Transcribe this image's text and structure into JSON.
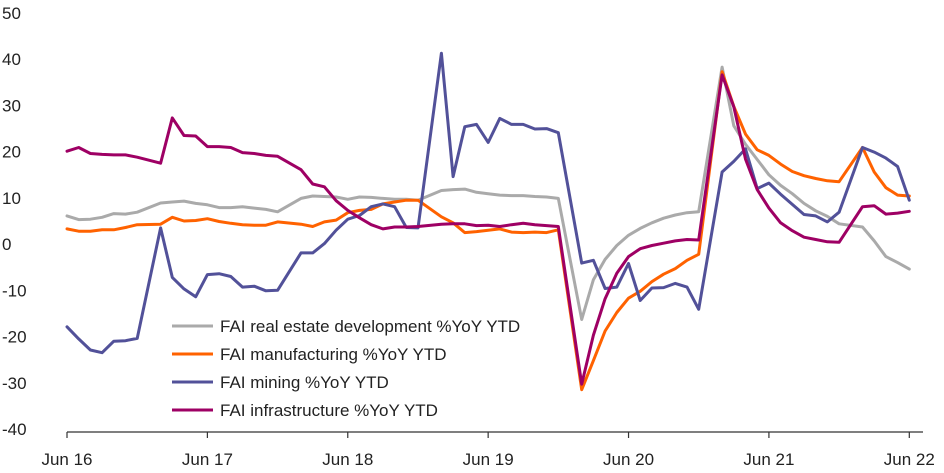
{
  "chart_data": {
    "type": "line",
    "title": "",
    "xlabel": "",
    "ylabel": "",
    "ylim": [
      -40,
      50
    ],
    "yticks": [
      -40,
      -30,
      -20,
      -10,
      0,
      10,
      20,
      30,
      40,
      50
    ],
    "xlim": [
      "2016-06",
      "2022-07"
    ],
    "xtick_labels": [
      "Jun 16",
      "Jun 17",
      "Jun 18",
      "Jun 19",
      "Jun 20",
      "Jun 21",
      "Jun 22"
    ],
    "xtick_dates": [
      "2016-06",
      "2017-06",
      "2018-06",
      "2019-06",
      "2020-06",
      "2021-06",
      "2022-06"
    ],
    "grid": false,
    "legend_position": "bottom-left",
    "series": [
      {
        "name": "FAI real estate development %YoY YTD",
        "color": "#aaaaaa",
        "points": [
          [
            "2016-06",
            6.1
          ],
          [
            "2016-07",
            5.3
          ],
          [
            "2016-08",
            5.4
          ],
          [
            "2016-09",
            5.8
          ],
          [
            "2016-10",
            6.6
          ],
          [
            "2016-11",
            6.5
          ],
          [
            "2016-12",
            6.9
          ],
          [
            "2017-02",
            8.9
          ],
          [
            "2017-03",
            9.1
          ],
          [
            "2017-04",
            9.3
          ],
          [
            "2017-05",
            8.8
          ],
          [
            "2017-06",
            8.5
          ],
          [
            "2017-07",
            7.9
          ],
          [
            "2017-08",
            7.9
          ],
          [
            "2017-09",
            8.1
          ],
          [
            "2017-10",
            7.8
          ],
          [
            "2017-11",
            7.5
          ],
          [
            "2017-12",
            7.0
          ],
          [
            "2018-02",
            9.9
          ],
          [
            "2018-03",
            10.4
          ],
          [
            "2018-04",
            10.3
          ],
          [
            "2018-05",
            10.2
          ],
          [
            "2018-06",
            9.7
          ],
          [
            "2018-07",
            10.2
          ],
          [
            "2018-08",
            10.1
          ],
          [
            "2018-09",
            9.9
          ],
          [
            "2018-10",
            9.7
          ],
          [
            "2018-11",
            9.7
          ],
          [
            "2018-12",
            9.5
          ],
          [
            "2019-02",
            11.6
          ],
          [
            "2019-03",
            11.8
          ],
          [
            "2019-04",
            11.9
          ],
          [
            "2019-05",
            11.2
          ],
          [
            "2019-06",
            10.9
          ],
          [
            "2019-07",
            10.6
          ],
          [
            "2019-08",
            10.5
          ],
          [
            "2019-09",
            10.5
          ],
          [
            "2019-10",
            10.3
          ],
          [
            "2019-11",
            10.2
          ],
          [
            "2019-12",
            9.9
          ],
          [
            "2020-02",
            -16.3
          ],
          [
            "2020-03",
            -7.7
          ],
          [
            "2020-04",
            -3.3
          ],
          [
            "2020-05",
            -0.3
          ],
          [
            "2020-06",
            1.9
          ],
          [
            "2020-07",
            3.4
          ],
          [
            "2020-08",
            4.6
          ],
          [
            "2020-09",
            5.6
          ],
          [
            "2020-10",
            6.3
          ],
          [
            "2020-11",
            6.8
          ],
          [
            "2020-12",
            7.0
          ],
          [
            "2021-02",
            38.3
          ],
          [
            "2021-03",
            25.6
          ],
          [
            "2021-04",
            21.6
          ],
          [
            "2021-05",
            18.3
          ],
          [
            "2021-06",
            15.0
          ],
          [
            "2021-07",
            12.7
          ],
          [
            "2021-08",
            10.9
          ],
          [
            "2021-09",
            8.8
          ],
          [
            "2021-10",
            7.2
          ],
          [
            "2021-11",
            6.0
          ],
          [
            "2021-12",
            4.4
          ],
          [
            "2022-02",
            3.7
          ],
          [
            "2022-03",
            0.7
          ],
          [
            "2022-04",
            -2.7
          ],
          [
            "2022-05",
            -4.0
          ],
          [
            "2022-06",
            -5.4
          ]
        ]
      },
      {
        "name": "FAI manufacturing %YoY YTD",
        "color": "#ff6200",
        "points": [
          [
            "2016-06",
            3.3
          ],
          [
            "2016-07",
            2.8
          ],
          [
            "2016-08",
            2.8
          ],
          [
            "2016-09",
            3.1
          ],
          [
            "2016-10",
            3.1
          ],
          [
            "2016-11",
            3.6
          ],
          [
            "2016-12",
            4.2
          ],
          [
            "2017-02",
            4.3
          ],
          [
            "2017-03",
            5.8
          ],
          [
            "2017-04",
            5.0
          ],
          [
            "2017-05",
            5.1
          ],
          [
            "2017-06",
            5.5
          ],
          [
            "2017-07",
            4.9
          ],
          [
            "2017-08",
            4.5
          ],
          [
            "2017-09",
            4.2
          ],
          [
            "2017-10",
            4.1
          ],
          [
            "2017-11",
            4.1
          ],
          [
            "2017-12",
            4.8
          ],
          [
            "2018-02",
            4.3
          ],
          [
            "2018-03",
            3.8
          ],
          [
            "2018-04",
            4.8
          ],
          [
            "2018-05",
            5.2
          ],
          [
            "2018-06",
            6.8
          ],
          [
            "2018-07",
            7.3
          ],
          [
            "2018-08",
            7.5
          ],
          [
            "2018-09",
            8.7
          ],
          [
            "2018-10",
            9.1
          ],
          [
            "2018-11",
            9.5
          ],
          [
            "2018-12",
            9.5
          ],
          [
            "2019-02",
            5.9
          ],
          [
            "2019-03",
            4.6
          ],
          [
            "2019-04",
            2.5
          ],
          [
            "2019-05",
            2.7
          ],
          [
            "2019-06",
            3.0
          ],
          [
            "2019-07",
            3.3
          ],
          [
            "2019-08",
            2.6
          ],
          [
            "2019-09",
            2.5
          ],
          [
            "2019-10",
            2.6
          ],
          [
            "2019-11",
            2.5
          ],
          [
            "2019-12",
            3.1
          ],
          [
            "2020-02",
            -31.5
          ],
          [
            "2020-03",
            -25.2
          ],
          [
            "2020-04",
            -18.8
          ],
          [
            "2020-05",
            -14.8
          ],
          [
            "2020-06",
            -11.7
          ],
          [
            "2020-07",
            -10.2
          ],
          [
            "2020-08",
            -8.1
          ],
          [
            "2020-09",
            -6.5
          ],
          [
            "2020-10",
            -5.3
          ],
          [
            "2020-11",
            -3.5
          ],
          [
            "2020-12",
            -2.2
          ],
          [
            "2021-02",
            37.3
          ],
          [
            "2021-03",
            29.8
          ],
          [
            "2021-04",
            23.8
          ],
          [
            "2021-05",
            20.4
          ],
          [
            "2021-06",
            19.2
          ],
          [
            "2021-07",
            17.3
          ],
          [
            "2021-08",
            15.7
          ],
          [
            "2021-09",
            14.8
          ],
          [
            "2021-10",
            14.2
          ],
          [
            "2021-11",
            13.7
          ],
          [
            "2021-12",
            13.5
          ],
          [
            "2022-02",
            20.9
          ],
          [
            "2022-03",
            15.6
          ],
          [
            "2022-04",
            12.2
          ],
          [
            "2022-05",
            10.6
          ],
          [
            "2022-06",
            10.4
          ]
        ]
      },
      {
        "name": "FAI mining %YoY YTD",
        "color": "#525199",
        "points": [
          [
            "2016-06",
            -17.9
          ],
          [
            "2016-07",
            -20.5
          ],
          [
            "2016-08",
            -22.9
          ],
          [
            "2016-09",
            -23.5
          ],
          [
            "2016-10",
            -21.0
          ],
          [
            "2016-11",
            -20.9
          ],
          [
            "2016-12",
            -20.4
          ],
          [
            "2017-02",
            3.5
          ],
          [
            "2017-03",
            -7.2
          ],
          [
            "2017-04",
            -9.7
          ],
          [
            "2017-05",
            -11.4
          ],
          [
            "2017-06",
            -6.6
          ],
          [
            "2017-07",
            -6.4
          ],
          [
            "2017-08",
            -7.0
          ],
          [
            "2017-09",
            -9.3
          ],
          [
            "2017-10",
            -9.1
          ],
          [
            "2017-11",
            -10.1
          ],
          [
            "2017-12",
            -10.0
          ],
          [
            "2018-02",
            -1.9
          ],
          [
            "2018-03",
            -1.9
          ],
          [
            "2018-04",
            0.1
          ],
          [
            "2018-05",
            3.0
          ],
          [
            "2018-06",
            5.4
          ],
          [
            "2018-07",
            6.2
          ],
          [
            "2018-08",
            8.1
          ],
          [
            "2018-09",
            8.7
          ],
          [
            "2018-10",
            8.1
          ],
          [
            "2018-11",
            3.6
          ],
          [
            "2018-12",
            3.5
          ],
          [
            "2019-02",
            41.3
          ],
          [
            "2019-03",
            14.6
          ],
          [
            "2019-04",
            25.4
          ],
          [
            "2019-05",
            25.9
          ],
          [
            "2019-06",
            22.0
          ],
          [
            "2019-07",
            27.2
          ],
          [
            "2019-08",
            25.9
          ],
          [
            "2019-09",
            25.9
          ],
          [
            "2019-10",
            24.9
          ],
          [
            "2019-11",
            25.0
          ],
          [
            "2019-12",
            24.1
          ],
          [
            "2020-02",
            -4.1
          ],
          [
            "2020-03",
            -3.5
          ],
          [
            "2020-04",
            -9.6
          ],
          [
            "2020-05",
            -9.3
          ],
          [
            "2020-06",
            -4.2
          ],
          [
            "2020-07",
            -12.2
          ],
          [
            "2020-08",
            -9.5
          ],
          [
            "2020-09",
            -9.4
          ],
          [
            "2020-10",
            -8.5
          ],
          [
            "2020-11",
            -9.3
          ],
          [
            "2020-12",
            -14.1
          ],
          [
            "2021-02",
            15.6
          ],
          [
            "2021-03",
            17.9
          ],
          [
            "2021-04",
            20.6
          ],
          [
            "2021-05",
            12.0
          ],
          [
            "2021-06",
            13.2
          ],
          [
            "2021-07",
            10.8
          ],
          [
            "2021-08",
            8.6
          ],
          [
            "2021-09",
            6.4
          ],
          [
            "2021-10",
            6.1
          ],
          [
            "2021-11",
            4.8
          ],
          [
            "2021-12",
            6.9
          ],
          [
            "2022-02",
            20.9
          ],
          [
            "2022-03",
            19.9
          ],
          [
            "2022-04",
            18.6
          ],
          [
            "2022-05",
            16.8
          ],
          [
            "2022-06",
            9.5
          ]
        ]
      },
      {
        "name": "FAI infrastructure %YoY YTD",
        "color": "#9e0064",
        "points": [
          [
            "2016-06",
            20.1
          ],
          [
            "2016-07",
            20.9
          ],
          [
            "2016-08",
            19.6
          ],
          [
            "2016-09",
            19.4
          ],
          [
            "2016-10",
            19.3
          ],
          [
            "2016-11",
            19.3
          ],
          [
            "2016-12",
            18.8
          ],
          [
            "2017-02",
            17.5
          ],
          [
            "2017-03",
            27.3
          ],
          [
            "2017-04",
            23.5
          ],
          [
            "2017-05",
            23.4
          ],
          [
            "2017-06",
            21.1
          ],
          [
            "2017-07",
            21.1
          ],
          [
            "2017-08",
            20.9
          ],
          [
            "2017-09",
            19.8
          ],
          [
            "2017-10",
            19.6
          ],
          [
            "2017-11",
            19.2
          ],
          [
            "2017-12",
            19.0
          ],
          [
            "2018-02",
            16.1
          ],
          [
            "2018-03",
            13.0
          ],
          [
            "2018-04",
            12.4
          ],
          [
            "2018-05",
            9.4
          ],
          [
            "2018-06",
            7.3
          ],
          [
            "2018-07",
            5.7
          ],
          [
            "2018-08",
            4.2
          ],
          [
            "2018-09",
            3.3
          ],
          [
            "2018-10",
            3.7
          ],
          [
            "2018-11",
            3.7
          ],
          [
            "2018-12",
            3.8
          ],
          [
            "2019-02",
            4.3
          ],
          [
            "2019-03",
            4.4
          ],
          [
            "2019-04",
            4.4
          ],
          [
            "2019-05",
            4.0
          ],
          [
            "2019-06",
            4.1
          ],
          [
            "2019-07",
            3.8
          ],
          [
            "2019-08",
            4.2
          ],
          [
            "2019-09",
            4.5
          ],
          [
            "2019-10",
            4.2
          ],
          [
            "2019-11",
            4.0
          ],
          [
            "2019-12",
            3.8
          ],
          [
            "2020-02",
            -30.3
          ],
          [
            "2020-03",
            -19.7
          ],
          [
            "2020-04",
            -11.8
          ],
          [
            "2020-05",
            -6.3
          ],
          [
            "2020-06",
            -2.7
          ],
          [
            "2020-07",
            -1.0
          ],
          [
            "2020-08",
            -0.3
          ],
          [
            "2020-09",
            0.2
          ],
          [
            "2020-10",
            0.7
          ],
          [
            "2020-11",
            1.0
          ],
          [
            "2020-12",
            0.9
          ],
          [
            "2021-02",
            36.6
          ],
          [
            "2021-03",
            29.7
          ],
          [
            "2021-04",
            18.4
          ],
          [
            "2021-05",
            11.8
          ],
          [
            "2021-06",
            7.8
          ],
          [
            "2021-07",
            4.6
          ],
          [
            "2021-08",
            2.9
          ],
          [
            "2021-09",
            1.5
          ],
          [
            "2021-10",
            1.0
          ],
          [
            "2021-11",
            0.5
          ],
          [
            "2021-12",
            0.4
          ],
          [
            "2022-02",
            8.1
          ],
          [
            "2022-03",
            8.3
          ],
          [
            "2022-04",
            6.5
          ],
          [
            "2022-05",
            6.7
          ],
          [
            "2022-06",
            7.1
          ]
        ]
      }
    ]
  }
}
